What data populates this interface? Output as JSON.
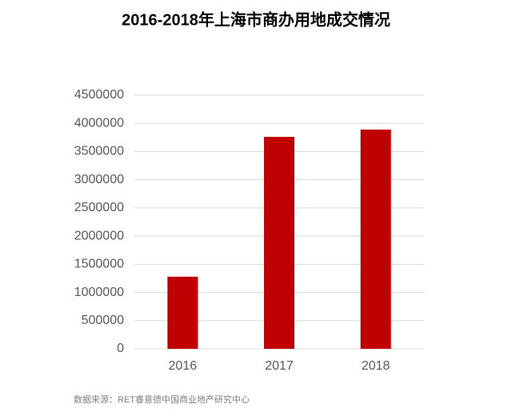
{
  "chart_data": {
    "type": "bar",
    "title": "2016-2018年上海市商办用地成交情况",
    "categories": [
      "2016",
      "2017",
      "2018"
    ],
    "values": [
      1280000,
      3760000,
      3890000
    ],
    "color": "#c00000",
    "ylim": [
      0,
      4500000
    ],
    "yticks": [
      0,
      500000,
      1000000,
      1500000,
      2000000,
      2500000,
      3000000,
      3500000,
      4000000,
      4500000
    ],
    "grid": true,
    "source": "数据来源：RET睿意德中国商业地产研究中心"
  }
}
